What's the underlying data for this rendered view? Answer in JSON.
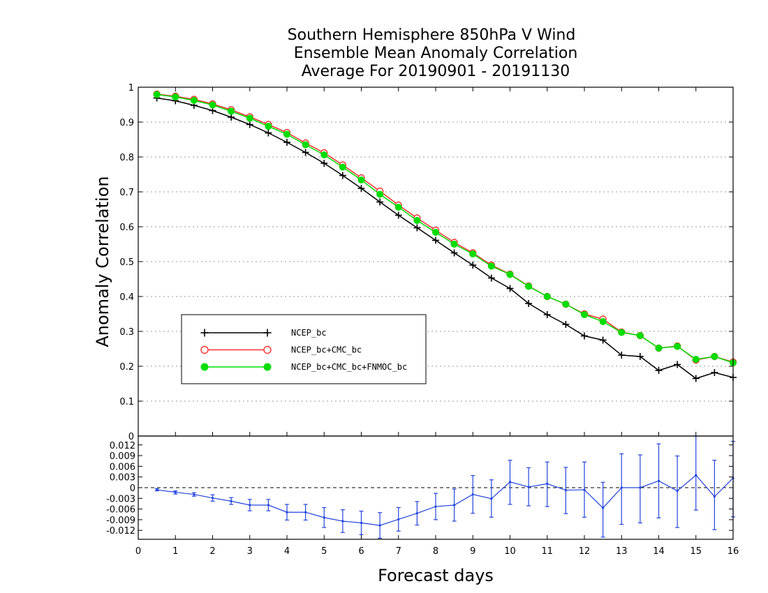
{
  "title_lines": [
    "Southern Hemisphere 850hPa V Wind",
    "Ensemble Mean Anomaly Correlation",
    "Average For 20190901 - 20191130"
  ],
  "chart_data": [
    {
      "type": "line",
      "title": "Southern Hemisphere 850hPa V Wind Ensemble Mean Anomaly Correlation Average For 20190901 - 20191130",
      "ylabel": "Anomaly Correlation",
      "xlim": [
        0,
        16
      ],
      "ylim": [
        0,
        1
      ],
      "y_ticks": [
        "0",
        "0.1",
        "0.2",
        "0.3",
        "0.4",
        "0.5",
        "0.6",
        "0.7",
        "0.8",
        "0.9",
        "1"
      ],
      "grid": "horizontal dotted",
      "legend_position": "left-middle",
      "x": [
        0.5,
        1,
        1.5,
        2,
        2.5,
        3,
        3.5,
        4,
        4.5,
        5,
        5.5,
        6,
        6.5,
        7,
        7.5,
        8,
        8.5,
        9,
        9.5,
        10,
        10.5,
        11,
        11.5,
        12,
        12.5,
        13,
        13.5,
        14,
        14.5,
        15,
        15.5,
        16
      ],
      "series": [
        {
          "name": "NCEP_bc",
          "color": "#000000",
          "marker": "plus",
          "values": [
            0.969,
            0.961,
            0.948,
            0.933,
            0.914,
            0.893,
            0.869,
            0.842,
            0.813,
            0.782,
            0.747,
            0.71,
            0.671,
            0.633,
            0.597,
            0.561,
            0.525,
            0.49,
            0.453,
            0.423,
            0.38,
            0.348,
            0.32,
            0.287,
            0.275,
            0.232,
            0.228,
            0.188,
            0.205,
            0.165,
            0.182,
            0.168
          ]
        },
        {
          "name": "NCEP_bc+CMC_bc",
          "color": "#ff3030",
          "marker": "open-circle",
          "values": [
            0.98,
            0.974,
            0.965,
            0.952,
            0.935,
            0.915,
            0.893,
            0.87,
            0.84,
            0.812,
            0.777,
            0.74,
            0.702,
            0.662,
            0.625,
            0.59,
            0.555,
            0.525,
            0.49,
            0.464,
            0.43,
            0.4,
            0.378,
            0.35,
            0.335,
            0.298,
            0.288,
            0.252,
            0.258,
            0.218,
            0.228,
            0.212
          ]
        },
        {
          "name": "NCEP_bc+CMC_bc+FNMOC_bc",
          "color": "#00dd00",
          "marker": "filled-circle",
          "values": [
            0.979,
            0.972,
            0.962,
            0.949,
            0.931,
            0.911,
            0.888,
            0.865,
            0.835,
            0.806,
            0.771,
            0.734,
            0.693,
            0.656,
            0.618,
            0.584,
            0.55,
            0.522,
            0.487,
            0.463,
            0.429,
            0.4,
            0.378,
            0.348,
            0.328,
            0.297,
            0.288,
            0.252,
            0.257,
            0.22,
            0.228,
            0.21
          ]
        }
      ]
    },
    {
      "type": "line",
      "xlabel": "Forecast days",
      "xlim": [
        0,
        16
      ],
      "ylim": [
        -0.0145,
        0.0145
      ],
      "x_ticks": [
        "0",
        "1",
        "2",
        "3",
        "4",
        "5",
        "6",
        "7",
        "8",
        "9",
        "10",
        "11",
        "12",
        "13",
        "14",
        "15",
        "16"
      ],
      "y_ticks": [
        "-0.012",
        "-0.009",
        "-0.006",
        "-0.003",
        "0",
        "0.003",
        "0.006",
        "0.009",
        "0.012"
      ],
      "zero_line": "dashed",
      "series": [
        {
          "name": "",
          "color": "#2244dd",
          "marker": "error-bar",
          "x": [
            0.5,
            1,
            1.5,
            2,
            2.5,
            3,
            3.5,
            4,
            4.5,
            5,
            5.5,
            6,
            6.5,
            7,
            7.5,
            8,
            8.5,
            9,
            9.5,
            10,
            10.5,
            11,
            11.5,
            12,
            12.5,
            13,
            13.5,
            14,
            14.5,
            15,
            15.5,
            16
          ],
          "values": [
            -0.0006,
            -0.0013,
            -0.0019,
            -0.0029,
            -0.0038,
            -0.0049,
            -0.0049,
            -0.0069,
            -0.0069,
            -0.0084,
            -0.0094,
            -0.0099,
            -0.0106,
            -0.0089,
            -0.0072,
            -0.0053,
            -0.0049,
            -0.0019,
            -0.0031,
            0.0016,
            0.0002,
            0.0011,
            -0.0007,
            -0.0006,
            -0.0057,
            0.0,
            0.0,
            0.0019,
            -0.0009,
            0.0035,
            -0.0025,
            0.0027
          ],
          "err_low": [
            -0.0009,
            -0.0018,
            -0.0024,
            -0.0038,
            -0.0047,
            -0.0065,
            -0.0065,
            -0.0091,
            -0.0091,
            -0.0112,
            -0.0126,
            -0.0132,
            -0.0142,
            -0.0122,
            -0.0105,
            -0.009,
            -0.0094,
            -0.0072,
            -0.0083,
            -0.0047,
            -0.0051,
            -0.0053,
            -0.0073,
            -0.0083,
            -0.0139,
            -0.0103,
            -0.0099,
            -0.0085,
            -0.0112,
            -0.0063,
            -0.0118,
            -0.0082
          ],
          "err_high": [
            -0.0003,
            -0.0009,
            -0.0014,
            -0.002,
            -0.0028,
            -0.0033,
            -0.0033,
            -0.0047,
            -0.0047,
            -0.0056,
            -0.0062,
            -0.0066,
            -0.007,
            -0.0056,
            -0.0039,
            -0.0016,
            -0.0004,
            0.0034,
            0.0022,
            0.0077,
            0.0056,
            0.0072,
            0.0057,
            0.0072,
            0.0015,
            0.0095,
            0.0092,
            0.0123,
            0.0089,
            0.0145,
            0.0077,
            0.013
          ]
        }
      ]
    }
  ]
}
